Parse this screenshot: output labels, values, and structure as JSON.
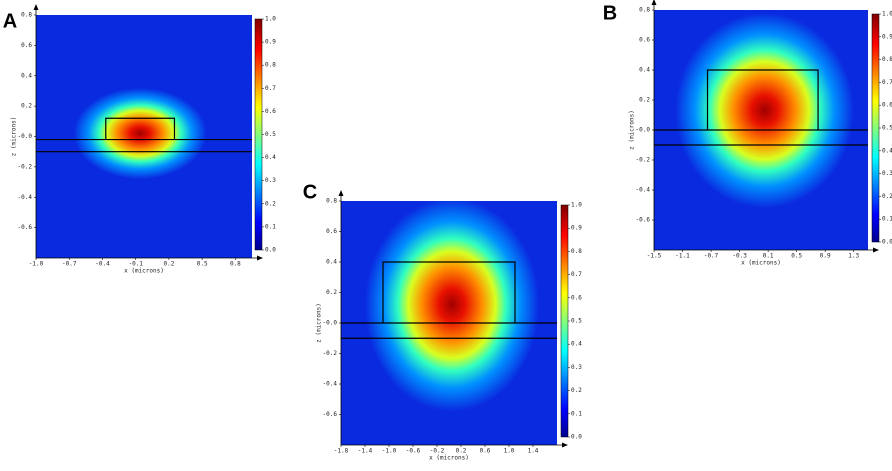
{
  "chart_data": [
    {
      "type": "mode-profile",
      "panel_label": "A",
      "xlabel": "x (microns)",
      "ylabel": "z (microns)",
      "xlim": [
        -1.0,
        0.95
      ],
      "ylim": [
        -0.8,
        0.8
      ],
      "xticks": [
        {
          "value": -1.0,
          "label": "-1.0"
        },
        -0.7,
        -0.4,
        -0.1,
        0.2,
        0.5,
        0.8
      ],
      "yticks": [
        0.8,
        0.6,
        0.4,
        0.2,
        {
          "value": 0,
          "label": "-0.0"
        },
        -0.2,
        -0.4,
        -0.6
      ],
      "clim": [
        0,
        1
      ],
      "cticks": [
        {
          "value": 0,
          "label": "0.0"
        },
        0.1,
        0.2,
        0.3,
        0.4,
        0.5,
        0.6,
        0.7,
        0.8,
        0.9,
        {
          "value": 1,
          "label": "1.0"
        }
      ],
      "outline": [
        [
          -0.37,
          -0.02
        ],
        [
          -0.37,
          0.12
        ],
        [
          0.25,
          0.12
        ],
        [
          0.25,
          -0.02
        ]
      ],
      "lines": [
        -0.02,
        -0.1
      ],
      "mode": {
        "x": -0.06,
        "z": 0.02,
        "rx": 0.6,
        "rz": 0.3
      }
    },
    {
      "type": "mode-profile",
      "panel_label": "B",
      "xlabel": "x (microns)",
      "ylabel": "z (microns)",
      "xlim": [
        -1.5,
        1.5
      ],
      "ylim": [
        -0.8,
        0.8
      ],
      "xticks": [
        -1.5,
        -1.1,
        -0.7,
        -0.3,
        0.1,
        0.5,
        0.9,
        1.3
      ],
      "yticks": [
        0.8,
        0.6,
        0.4,
        0.2,
        {
          "value": 0,
          "label": "-0.0"
        },
        -0.2,
        -0.4,
        -0.6
      ],
      "clim": [
        0,
        1
      ],
      "cticks": [
        {
          "value": 0,
          "label": "0.0"
        },
        0.1,
        0.2,
        0.3,
        0.4,
        0.5,
        0.6,
        0.7,
        0.8,
        0.9,
        {
          "value": 1,
          "label": "1.0"
        }
      ],
      "outline": [
        [
          -0.75,
          0
        ],
        [
          -0.75,
          0.4
        ],
        [
          0.8,
          0.4
        ],
        [
          0.8,
          0
        ]
      ],
      "lines": [
        0,
        -0.1
      ],
      "mode": {
        "x": 0.05,
        "z": 0.13,
        "rx": 1.25,
        "rz": 0.65
      }
    },
    {
      "type": "mode-profile",
      "panel_label": "C",
      "xlabel": "x (microns)",
      "ylabel": "z (microns)",
      "xlim": [
        -1.8,
        1.8
      ],
      "ylim": [
        -0.8,
        0.8
      ],
      "xticks": [
        -1.8,
        -1.4,
        {
          "value": -1.0,
          "label": "-1.0"
        },
        -0.6,
        -0.2,
        0.2,
        0.6,
        {
          "value": 1.0,
          "label": "1.0"
        },
        1.4
      ],
      "yticks": [
        0.8,
        0.6,
        0.4,
        0.2,
        {
          "value": 0,
          "label": "-0.0"
        },
        -0.2,
        -0.4,
        -0.6
      ],
      "clim": [
        0,
        1
      ],
      "cticks": [
        {
          "value": 0,
          "label": "0.0"
        },
        0.1,
        0.2,
        0.3,
        0.4,
        0.5,
        0.6,
        0.7,
        0.8,
        0.9,
        {
          "value": 1,
          "label": "1.0"
        }
      ],
      "outline": [
        [
          -1.1,
          0
        ],
        [
          -1.1,
          0.4
        ],
        [
          1.1,
          0.4
        ],
        [
          1.1,
          0
        ]
      ],
      "lines": [
        0,
        -0.1
      ],
      "mode": {
        "x": 0.05,
        "z": 0.12,
        "rx": 1.45,
        "rz": 0.7
      }
    }
  ]
}
